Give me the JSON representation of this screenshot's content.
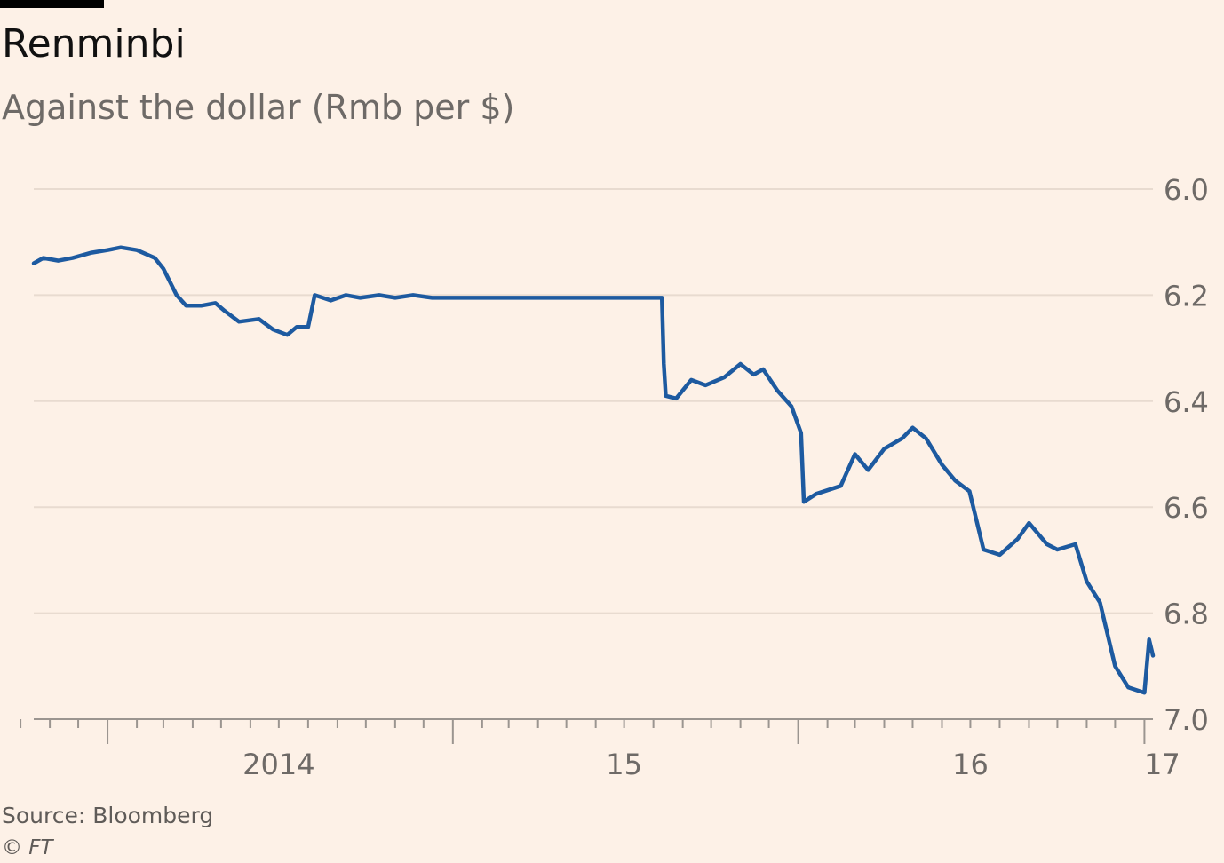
{
  "header": {
    "title": "Renminbi",
    "subtitle": "Against the dollar (Rmb per $)"
  },
  "footer": {
    "source": "Source: Bloomberg",
    "copyright": "© FT"
  },
  "colors": {
    "background": "#fdf1e7",
    "line": "#1d5aa0",
    "grid": "#e8dbd0",
    "axis": "#9b9590",
    "text": "#6e6a67"
  },
  "chart_data": {
    "type": "line",
    "title": "Renminbi",
    "subtitle": "Against the dollar (Rmb per $)",
    "xlabel": "",
    "ylabel": "",
    "y_inverted": true,
    "ylim": [
      6.0,
      7.0
    ],
    "xlim": [
      "2013-10-15",
      "2017-01-10"
    ],
    "y_ticks": [
      "6.0",
      "6.2",
      "6.4",
      "6.6",
      "6.8",
      "7.0"
    ],
    "x_ticks": [
      {
        "label": "2014",
        "date": "2014-01-01"
      },
      {
        "label": "15",
        "date": "2015-01-01"
      },
      {
        "label": "16",
        "date": "2016-01-01"
      },
      {
        "label": "17",
        "date": "2017-01-01"
      }
    ],
    "grid": "horizontal",
    "y_axis_position": "right",
    "series": [
      {
        "points": [
          [
            "2013-10-15",
            6.14
          ],
          [
            "2013-10-25",
            6.13
          ],
          [
            "2013-11-10",
            6.135
          ],
          [
            "2013-11-25",
            6.13
          ],
          [
            "2013-12-15",
            6.12
          ],
          [
            "2014-01-01",
            6.115
          ],
          [
            "2014-01-15",
            6.11
          ],
          [
            "2014-02-01",
            6.115
          ],
          [
            "2014-02-20",
            6.13
          ],
          [
            "2014-03-01",
            6.15
          ],
          [
            "2014-03-15",
            6.2
          ],
          [
            "2014-03-25",
            6.22
          ],
          [
            "2014-04-10",
            6.22
          ],
          [
            "2014-04-25",
            6.215
          ],
          [
            "2014-05-05",
            6.23
          ],
          [
            "2014-05-20",
            6.25
          ],
          [
            "2014-06-10",
            6.245
          ],
          [
            "2014-06-25",
            6.265
          ],
          [
            "2014-07-10",
            6.275
          ],
          [
            "2014-07-20",
            6.26
          ],
          [
            "2014-08-01",
            6.26
          ],
          [
            "2014-08-08",
            6.2
          ],
          [
            "2014-08-25",
            6.21
          ],
          [
            "2014-09-10",
            6.2
          ],
          [
            "2014-09-25",
            6.205
          ],
          [
            "2014-10-15",
            6.2
          ],
          [
            "2014-11-01",
            6.205
          ],
          [
            "2014-11-20",
            6.2
          ],
          [
            "2014-12-10",
            6.205
          ],
          [
            "2015-01-01",
            6.205
          ],
          [
            "2015-02-15",
            6.205
          ],
          [
            "2015-03-10",
            6.205
          ],
          [
            "2015-04-01",
            6.205
          ],
          [
            "2015-04-10",
            6.205
          ],
          [
            "2015-08-10",
            6.205
          ],
          [
            "2015-08-12",
            6.33
          ],
          [
            "2015-08-14",
            6.39
          ],
          [
            "2015-08-25",
            6.395
          ],
          [
            "2015-09-10",
            6.36
          ],
          [
            "2015-09-25",
            6.37
          ],
          [
            "2015-10-15",
            6.355
          ],
          [
            "2015-11-01",
            6.33
          ],
          [
            "2015-11-15",
            6.35
          ],
          [
            "2015-11-25",
            6.34
          ],
          [
            "2015-12-10",
            6.38
          ],
          [
            "2015-12-25",
            6.41
          ],
          [
            "2016-01-04",
            6.46
          ],
          [
            "2016-01-07",
            6.59
          ],
          [
            "2016-01-20",
            6.575
          ],
          [
            "2016-02-15",
            6.56
          ],
          [
            "2016-03-01",
            6.5
          ],
          [
            "2016-03-15",
            6.53
          ],
          [
            "2016-04-01",
            6.49
          ],
          [
            "2016-04-20",
            6.47
          ],
          [
            "2016-05-01",
            6.45
          ],
          [
            "2016-05-15",
            6.47
          ],
          [
            "2016-06-01",
            6.52
          ],
          [
            "2016-06-15",
            6.55
          ],
          [
            "2016-06-30",
            6.57
          ],
          [
            "2016-07-15",
            6.68
          ],
          [
            "2016-08-01",
            6.69
          ],
          [
            "2016-08-20",
            6.66
          ],
          [
            "2016-09-01",
            6.63
          ],
          [
            "2016-09-20",
            6.67
          ],
          [
            "2016-10-01",
            6.68
          ],
          [
            "2016-10-20",
            6.67
          ],
          [
            "2016-11-01",
            6.74
          ],
          [
            "2016-11-15",
            6.78
          ],
          [
            "2016-12-01",
            6.9
          ],
          [
            "2016-12-15",
            6.94
          ],
          [
            "2017-01-01",
            6.95
          ],
          [
            "2017-01-06",
            6.85
          ],
          [
            "2017-01-10",
            6.88
          ]
        ]
      }
    ]
  }
}
